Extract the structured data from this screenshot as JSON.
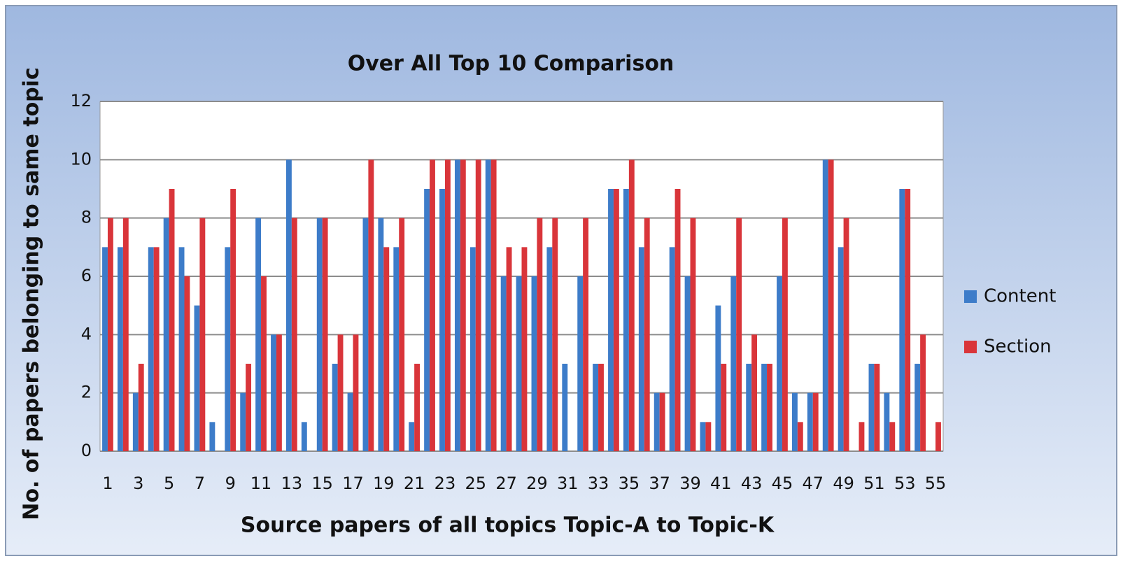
{
  "chart_data": {
    "type": "bar",
    "title": "Over All Top 10 Comparison",
    "x_label": "Source papers of all topics Topic-A to Topic-K",
    "y_label": "No. of papers belonging to same topic",
    "categories": [
      1,
      null,
      3,
      null,
      5,
      null,
      7,
      null,
      9,
      null,
      11,
      null,
      13,
      null,
      15,
      null,
      17,
      null,
      19,
      null,
      21,
      null,
      23,
      null,
      25,
      null,
      27,
      null,
      29,
      null,
      31,
      null,
      33,
      null,
      35,
      null,
      37,
      null,
      39,
      null,
      41,
      null,
      43,
      null,
      45,
      null,
      47,
      null,
      49,
      null,
      51,
      null,
      53,
      null,
      55
    ],
    "series": [
      {
        "name": "Content",
        "color": "#3d7cc9",
        "values": [
          7,
          7,
          2,
          7,
          8,
          7,
          5,
          1,
          7,
          2,
          8,
          4,
          10,
          1,
          8,
          3,
          2,
          8,
          8,
          7,
          1,
          9,
          9,
          10,
          7,
          10,
          6,
          6,
          6,
          7,
          3,
          6,
          3,
          9,
          9,
          7,
          2,
          7,
          6,
          1,
          5,
          6,
          3,
          3,
          6,
          2,
          2,
          10,
          7,
          0,
          3,
          2,
          9,
          3,
          0
        ]
      },
      {
        "name": "Section",
        "color": "#d9353a",
        "values": [
          8,
          8,
          3,
          7,
          9,
          6,
          8,
          0,
          9,
          3,
          6,
          4,
          8,
          0,
          8,
          4,
          4,
          10,
          7,
          8,
          3,
          10,
          10,
          10,
          10,
          10,
          7,
          7,
          8,
          8,
          0,
          8,
          3,
          9,
          10,
          8,
          2,
          9,
          8,
          1,
          3,
          8,
          4,
          3,
          8,
          1,
          2,
          10,
          8,
          1,
          3,
          1,
          9,
          4,
          1
        ]
      }
    ],
    "ylim": [
      0,
      12
    ],
    "yticks": [
      0,
      2,
      4,
      6,
      8,
      10,
      12
    ],
    "grid": true,
    "legend": "right"
  }
}
